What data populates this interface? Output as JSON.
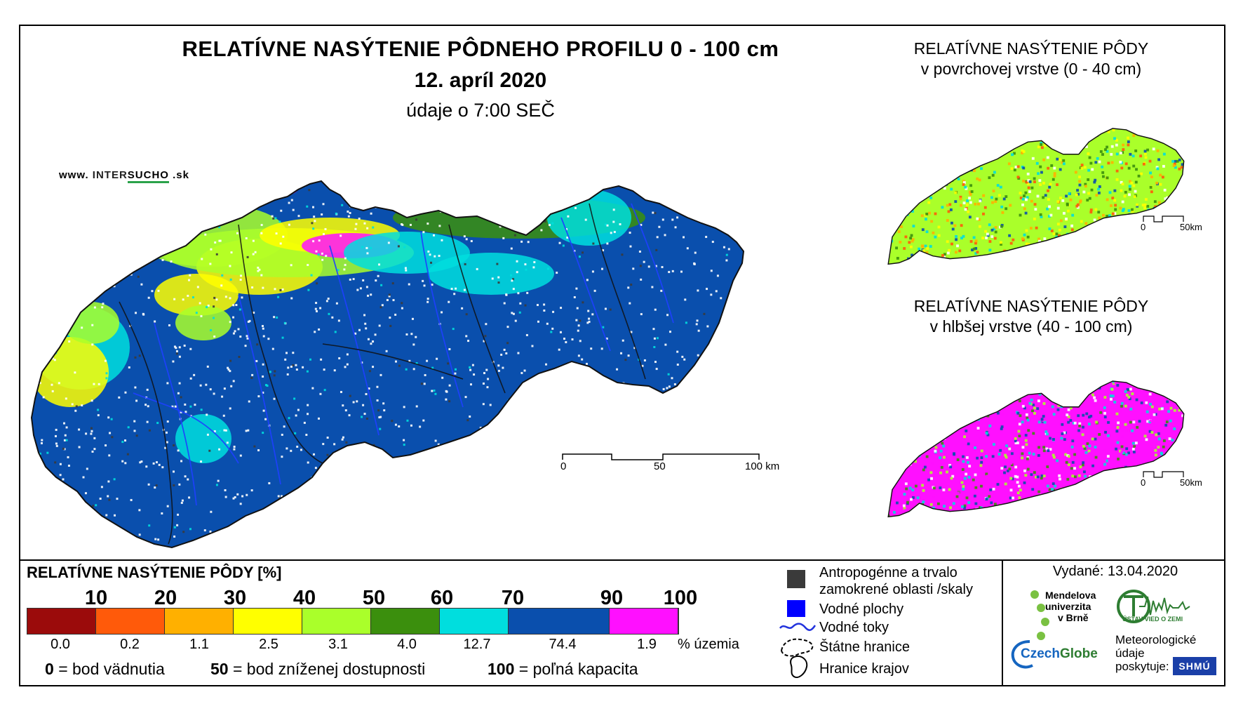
{
  "title": "RELATÍVNE NASÝTENIE PÔDNEHO PROFILU 0 - 100 cm",
  "date": "12. apríl 2020",
  "time_note": "údaje o 7:00 SEČ",
  "website": {
    "prefix": "www.",
    "brand_a": "INTER",
    "brand_b": "SUCHO",
    "suffix": ".sk"
  },
  "inset_top": {
    "title_line1": "RELATÍVNE NASÝTENIE PÔDY",
    "title_line2": "v povrchovej vrstve (0 - 40 cm)"
  },
  "inset_bottom": {
    "title_line1": "RELATÍVNE NASÝTENIE PÔDY",
    "title_line2": "v hlbšej vrstve (40 - 100 cm)"
  },
  "main_scale": {
    "labels": [
      "0",
      "50",
      "100 km"
    ]
  },
  "inset_scale": {
    "labels": [
      "0",
      "50km"
    ]
  },
  "legend": {
    "title": "RELATÍVNE NASÝTENIE PÔDY [%]",
    "ticks": [
      "10",
      "20",
      "30",
      "40",
      "50",
      "60",
      "70",
      "90",
      "100"
    ],
    "colors": [
      "#9b0b0b",
      "#ff5a0a",
      "#ffb000",
      "#ffff00",
      "#aaff2a",
      "#3b8f0d",
      "#00dede",
      "#0a4fad",
      "#ff10ff"
    ],
    "percentages": [
      "0.0",
      "0.2",
      "1.1",
      "2.5",
      "3.1",
      "4.0",
      "12.7",
      "74.4",
      "1.9"
    ],
    "pct_unit": "% územia",
    "def_0_num": "0",
    "def_0_text": "= bod vädnutia",
    "def_50_num": "50",
    "def_50_text": "= bod zníženej dostupnosti",
    "def_100_num": "100",
    "def_100_text": "= poľná kapacita"
  },
  "symbols": {
    "anthropogenic_line1": "Antropogénne a trvalo",
    "anthropogenic_line2": "zamokrené oblasti /skaly",
    "water_bodies": "Vodné plochy",
    "rivers": "Vodné toky",
    "state_border": "Štátne hranice",
    "region_border": "Hranice krajov",
    "anthropogenic_color": "#3a3a3a",
    "water_color": "#0000ff"
  },
  "issued": "Vydané: 13.04.2020",
  "logos": {
    "mendel_1": "Mendelova",
    "mendel_2": "univerzita",
    "mendel_3": "v Brně",
    "uvz": "ÚSTAV VIED O ZEMI",
    "czechglobe_a": "Czech",
    "czechglobe_b": "Globe",
    "meteo_1": "Meteorologické",
    "meteo_2": "údaje",
    "meteo_3": "poskytuje:",
    "shmu": "SHMÚ"
  }
}
